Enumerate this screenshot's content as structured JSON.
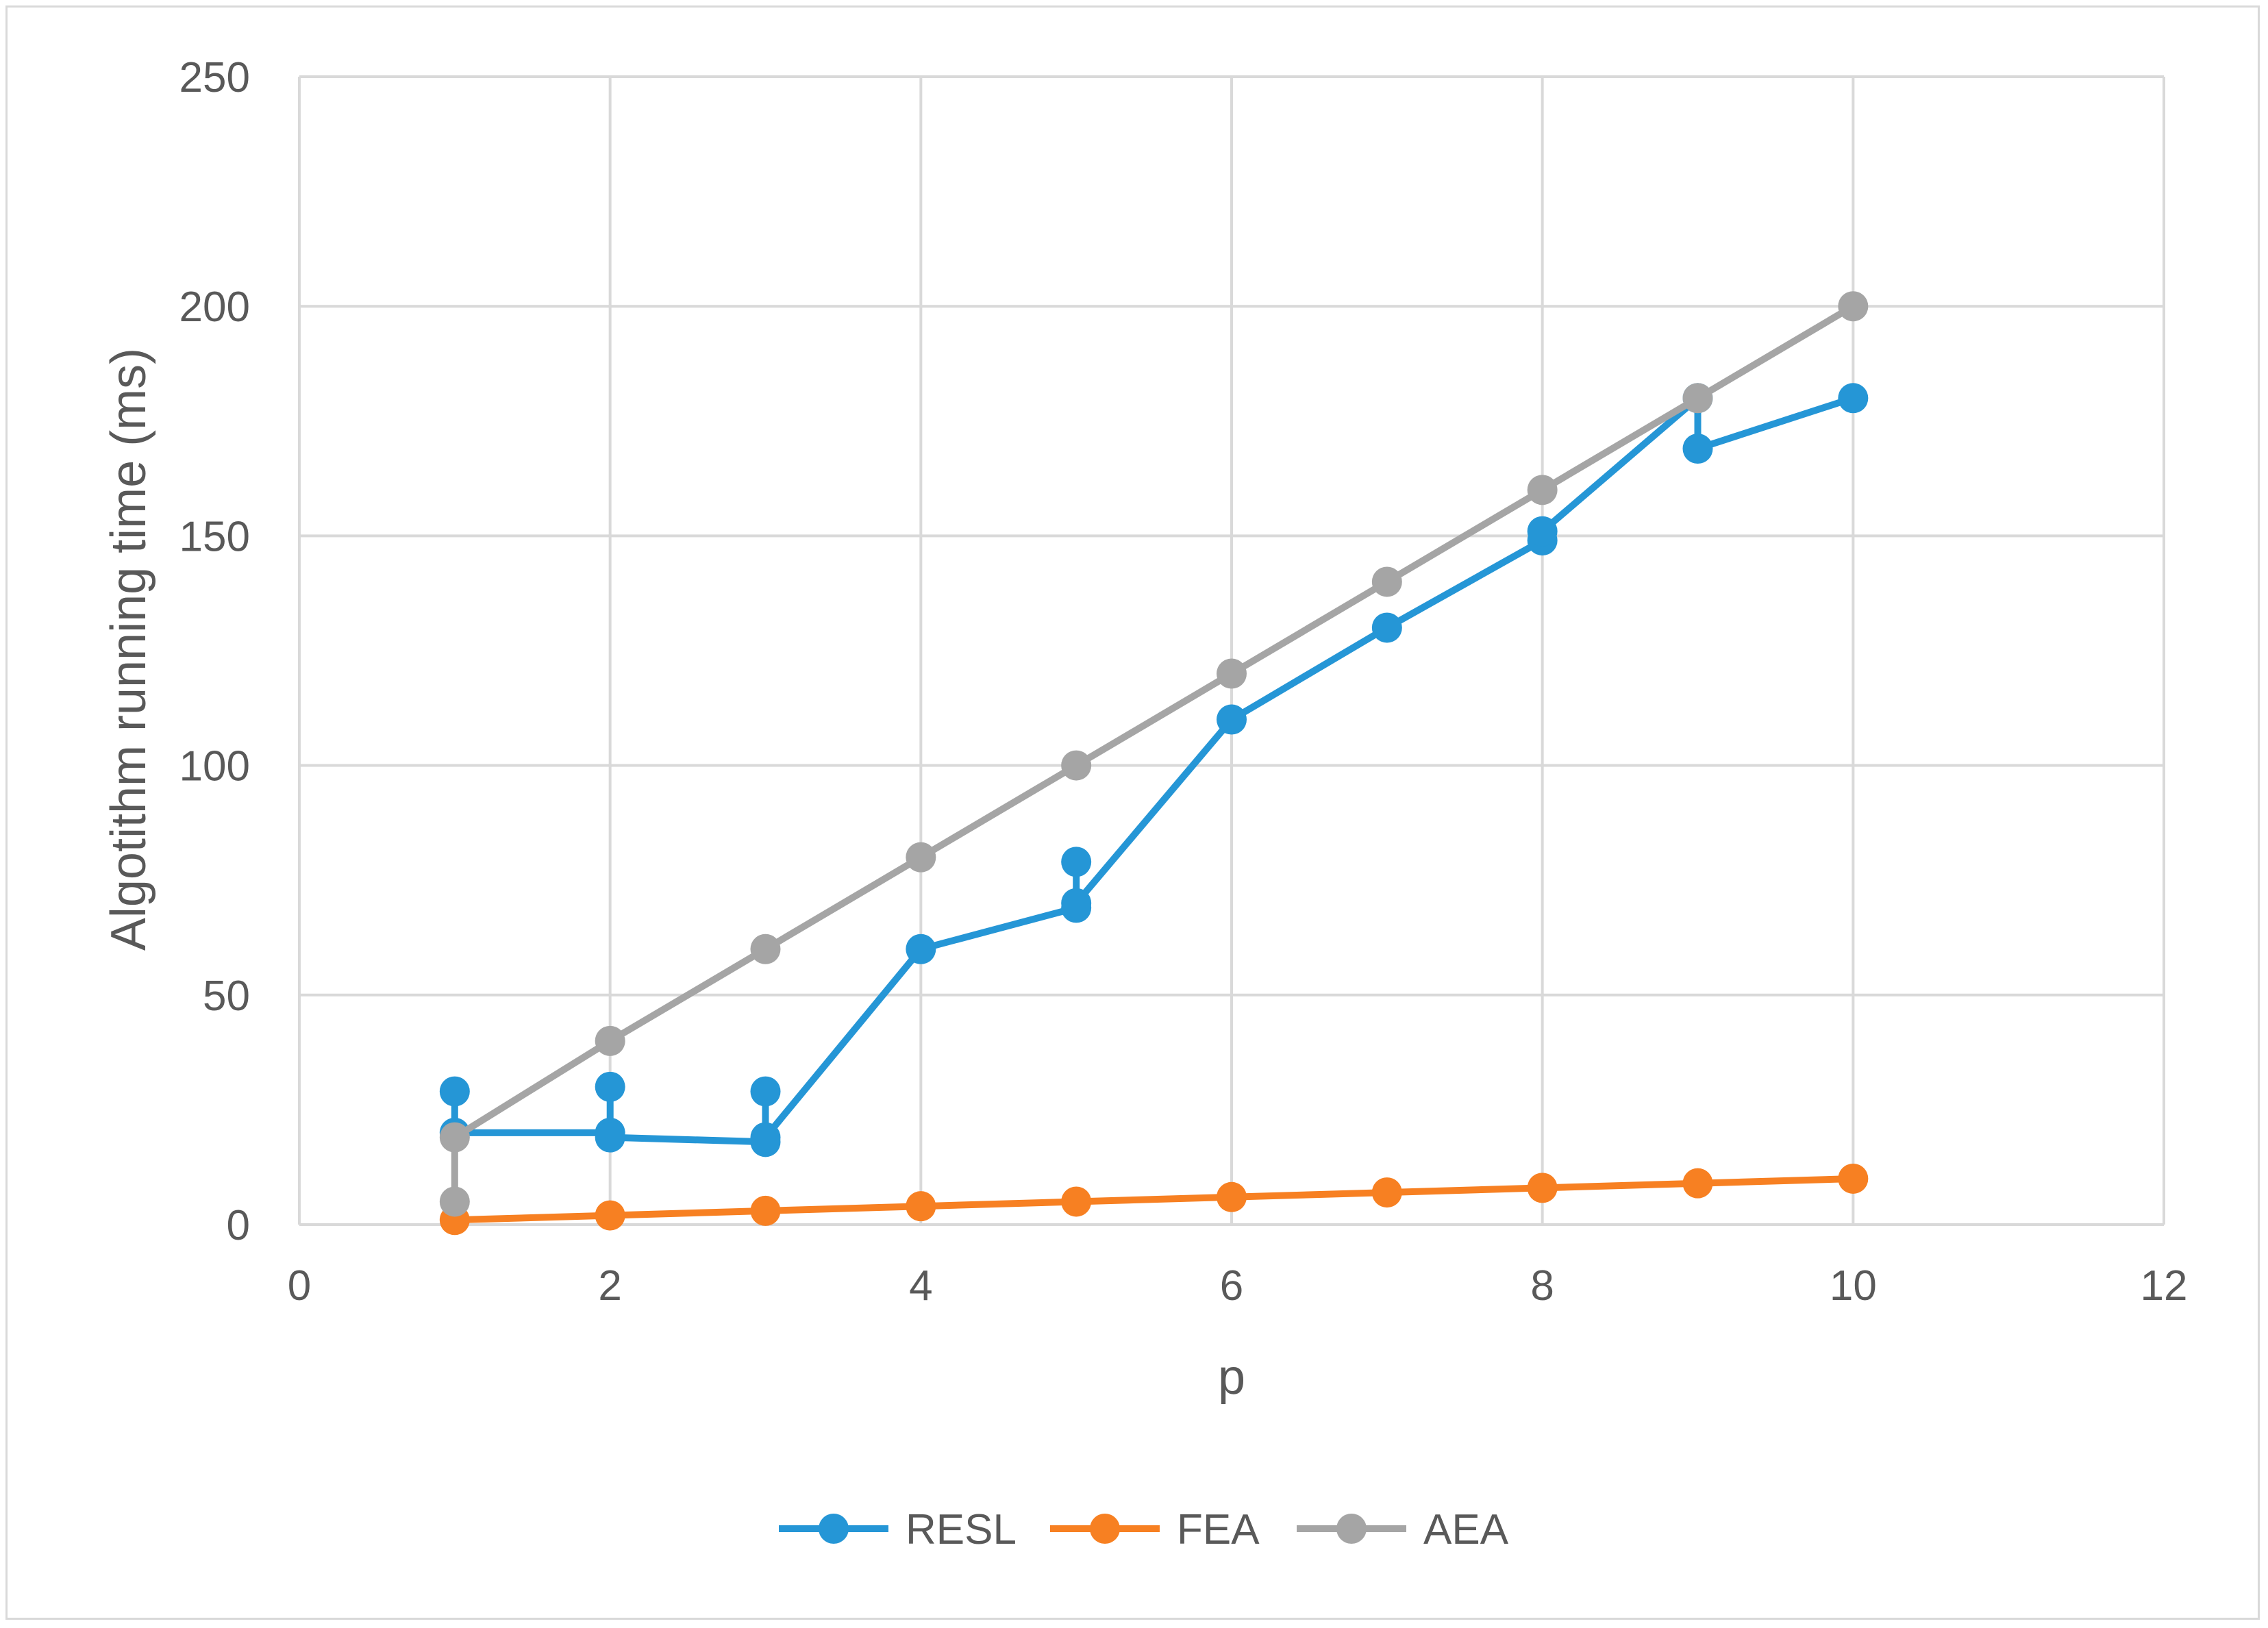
{
  "chart_data": {
    "type": "line",
    "xlabel": "p",
    "ylabel": "Algotithm running time (ms)",
    "xlim": [
      0,
      12
    ],
    "ylim": [
      0,
      250
    ],
    "x_ticks": [
      "0",
      "2",
      "4",
      "6",
      "8",
      "10",
      "12"
    ],
    "y_ticks": [
      "0",
      "50",
      "100",
      "150",
      "200",
      "250"
    ],
    "grid": true,
    "legend_position": "bottom",
    "series": [
      {
        "name": "RESL",
        "color": "#2596d6",
        "points": [
          [
            1,
            29
          ],
          [
            1,
            20
          ],
          [
            2,
            20
          ],
          [
            2,
            30
          ],
          [
            2,
            19
          ],
          [
            3,
            18
          ],
          [
            3,
            29
          ],
          [
            3,
            19
          ],
          [
            4,
            60
          ],
          [
            5,
            69
          ],
          [
            5,
            79
          ],
          [
            5,
            70
          ],
          [
            6,
            110
          ],
          [
            7,
            130
          ],
          [
            8,
            149
          ],
          [
            8,
            151
          ],
          [
            9,
            180
          ],
          [
            9,
            169
          ],
          [
            10,
            180
          ]
        ]
      },
      {
        "name": "FEA",
        "color": "#f78022",
        "points": [
          [
            1,
            1
          ],
          [
            2,
            2
          ],
          [
            3,
            3
          ],
          [
            4,
            4
          ],
          [
            5,
            5
          ],
          [
            6,
            6
          ],
          [
            7,
            7
          ],
          [
            8,
            8
          ],
          [
            9,
            9
          ],
          [
            10,
            10
          ]
        ]
      },
      {
        "name": "AEA",
        "color": "#a5a5a5",
        "points": [
          [
            1,
            5
          ],
          [
            1,
            19
          ],
          [
            2,
            40
          ],
          [
            3,
            60
          ],
          [
            4,
            80
          ],
          [
            5,
            100
          ],
          [
            6,
            120
          ],
          [
            7,
            140
          ],
          [
            8,
            160
          ],
          [
            9,
            180
          ],
          [
            10,
            200
          ]
        ]
      }
    ]
  }
}
